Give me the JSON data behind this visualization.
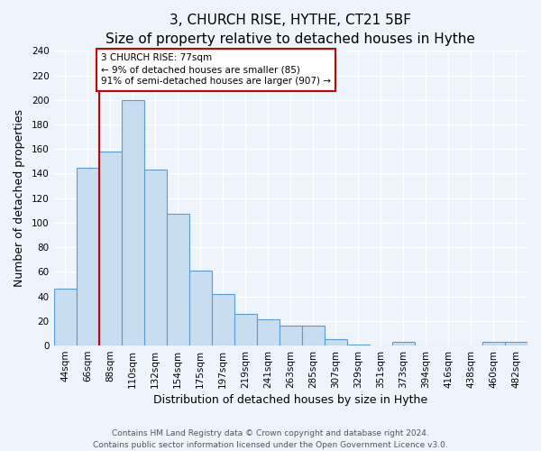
{
  "title": "3, CHURCH RISE, HYTHE, CT21 5BF",
  "subtitle": "Size of property relative to detached houses in Hythe",
  "xlabel": "Distribution of detached houses by size in Hythe",
  "ylabel": "Number of detached properties",
  "bar_labels": [
    "44sqm",
    "66sqm",
    "88sqm",
    "110sqm",
    "132sqm",
    "154sqm",
    "175sqm",
    "197sqm",
    "219sqm",
    "241sqm",
    "263sqm",
    "285sqm",
    "307sqm",
    "329sqm",
    "351sqm",
    "373sqm",
    "394sqm",
    "416sqm",
    "438sqm",
    "460sqm",
    "482sqm"
  ],
  "bar_values": [
    46,
    145,
    158,
    200,
    143,
    107,
    61,
    42,
    26,
    21,
    16,
    16,
    5,
    1,
    0,
    3,
    0,
    0,
    0,
    3,
    3
  ],
  "bar_color": "#c9ddf0",
  "bar_edge_color": "#5b9bd5",
  "annotation_box_text": "3 CHURCH RISE: 77sqm\n← 9% of detached houses are smaller (85)\n91% of semi-detached houses are larger (907) →",
  "vline_color": "#cc0000",
  "vline_x_index": 1.5,
  "ylim": [
    0,
    240
  ],
  "yticks": [
    0,
    20,
    40,
    60,
    80,
    100,
    120,
    140,
    160,
    180,
    200,
    220,
    240
  ],
  "footer_line1": "Contains HM Land Registry data © Crown copyright and database right 2024.",
  "footer_line2": "Contains public sector information licensed under the Open Government Licence v3.0.",
  "bg_color": "#eef4fc",
  "plot_bg_color": "#eef4fc",
  "title_fontsize": 11,
  "subtitle_fontsize": 9.5,
  "axis_label_fontsize": 9,
  "tick_fontsize": 7.5,
  "footer_fontsize": 6.5,
  "grid_color": "#ffffff"
}
